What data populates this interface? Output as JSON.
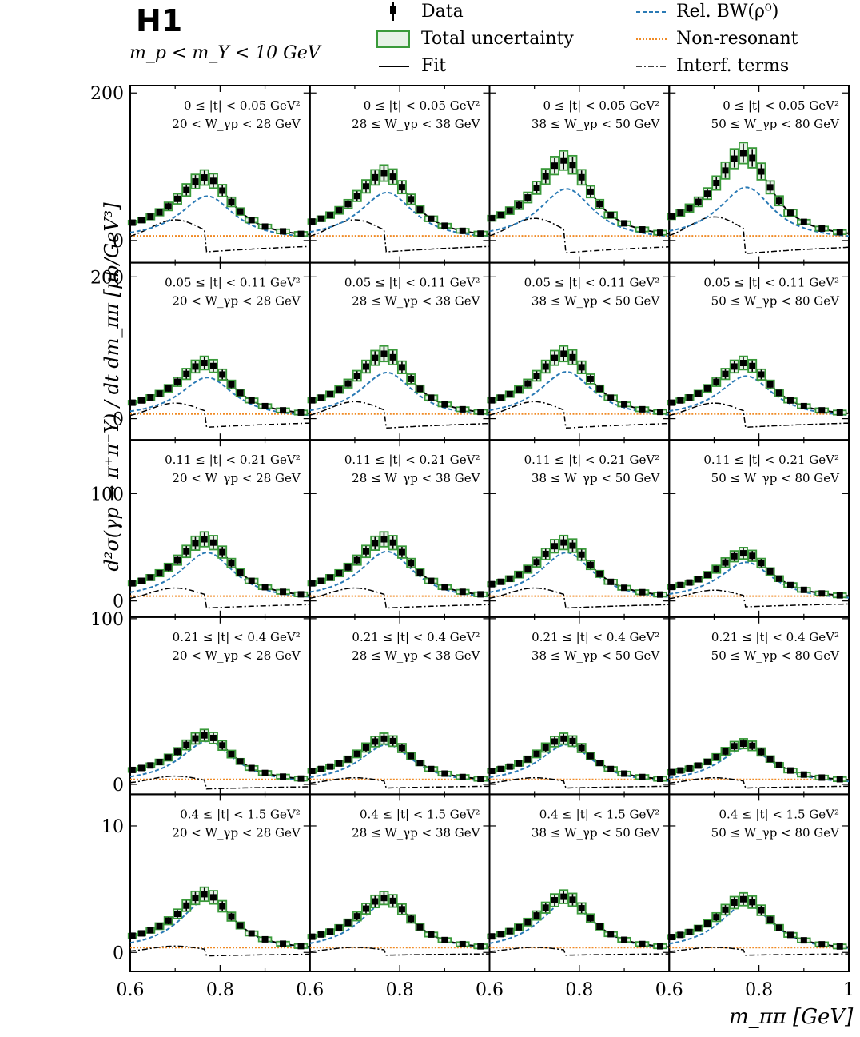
{
  "header": {
    "logo": "H1",
    "selection": "m_p < m_Y < 10 GeV"
  },
  "legend": {
    "data": "Data",
    "total_unc": "Total uncertainty",
    "fit": "Fit",
    "bw": "Rel. BW(ρ⁰)",
    "nonres": "Non-resonant",
    "interf": "Interf. terms"
  },
  "colors": {
    "data": "#000000",
    "unc": "#3a9a3a",
    "fit": "#000000",
    "bw": "#2a7ab5",
    "nonres": "#f08a24",
    "interf": "#000000"
  },
  "chart_data": {
    "type": "scatter",
    "ylabel": "d²σ(γp → π⁺π⁻Y) / dt dm_ππ [μb/GeV³]",
    "xlabel": "m_ππ [GeV]",
    "xlim": [
      0.6,
      1.0
    ],
    "xticks": [
      "0.6",
      "0.8",
      "0.6",
      "0.8",
      "0.6",
      "0.8",
      "0.6",
      "0.8",
      "1"
    ],
    "t_bins": [
      "0 ≤ |t| < 0.05 GeV²",
      "0.05 ≤ |t| < 0.11 GeV²",
      "0.11 ≤ |t| < 0.21 GeV²",
      "0.21 ≤ |t| < 0.4 GeV²",
      "0.4 ≤ |t| < 1.5 GeV²"
    ],
    "w_bins": [
      "20 < W_γp < 28 GeV",
      "28 ≤ W_γp < 38 GeV",
      "38 ≤ W_γp < 50 GeV",
      "50 ≤ W_γp < 80 GeV"
    ],
    "rows": [
      {
        "ylim": [
          -30,
          210
        ],
        "yticks": [
          0,
          200
        ],
        "peaks": [
          82,
          88,
          105,
          115
        ],
        "bw_peak": [
          60,
          65,
          70,
          72
        ],
        "interf": [
          28,
          28,
          30,
          32
        ]
      },
      {
        "ylim": [
          -30,
          220
        ],
        "yticks": [
          0,
          200
        ],
        "peaks": [
          75,
          88,
          88,
          75
        ],
        "bw_peak": [
          58,
          65,
          66,
          60
        ],
        "interf": [
          22,
          24,
          24,
          22
        ]
      },
      {
        "ylim": [
          -15,
          150
        ],
        "yticks": [
          0,
          100
        ],
        "peaks": [
          55,
          55,
          52,
          42
        ],
        "bw_peak": [
          45,
          46,
          45,
          36
        ],
        "interf": [
          12,
          12,
          12,
          10
        ]
      },
      {
        "ylim": [
          -6,
          101
        ],
        "yticks": [
          0,
          100
        ],
        "peaks": [
          28,
          26,
          26,
          23
        ],
        "bw_peak": [
          26,
          24,
          24,
          22
        ],
        "interf": [
          5,
          4,
          4,
          4
        ]
      },
      {
        "ylim": [
          -1.5,
          12.5
        ],
        "yticks": [
          0,
          10
        ],
        "peaks": [
          4.4,
          4.1,
          4.2,
          4.0
        ],
        "bw_peak": [
          4.2,
          4.0,
          4.0,
          3.8
        ],
        "interf": [
          0.5,
          0.4,
          0.4,
          0.4
        ]
      }
    ],
    "bin_centers": [
      0.605,
      0.625,
      0.645,
      0.665,
      0.685,
      0.705,
      0.725,
      0.745,
      0.765,
      0.785,
      0.805,
      0.825,
      0.845,
      0.87,
      0.9,
      0.94,
      0.98
    ],
    "grid": false,
    "legend_position": "top"
  }
}
